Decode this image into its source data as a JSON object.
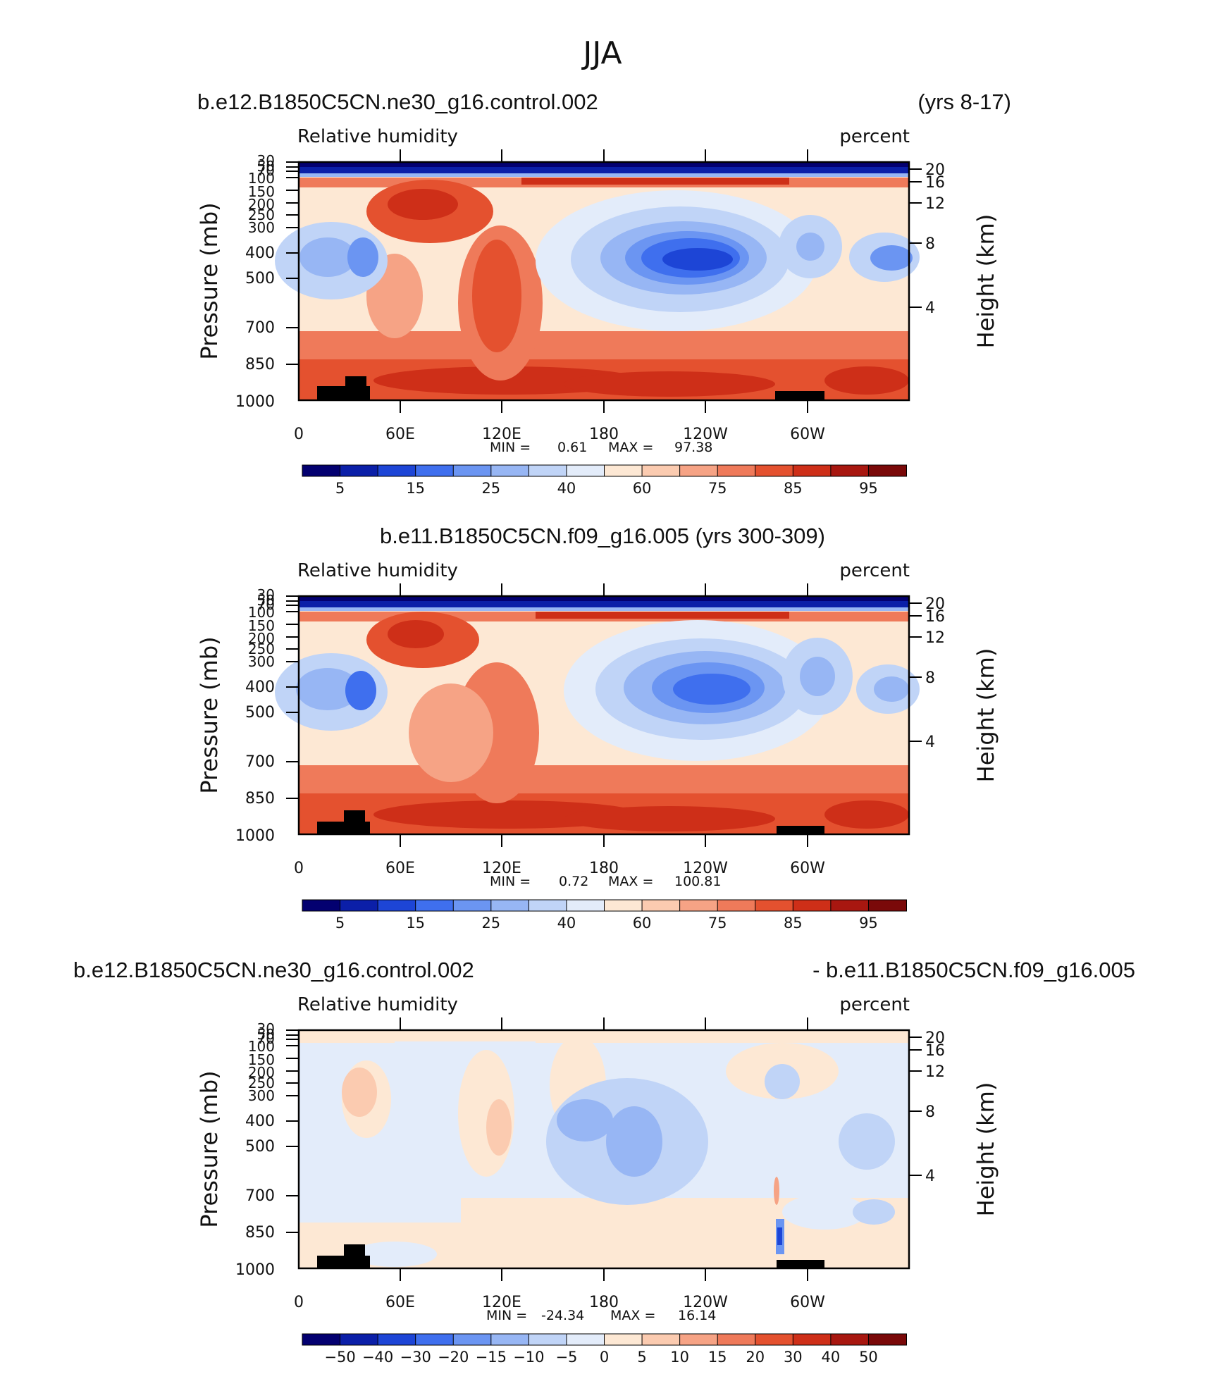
{
  "figure": {
    "title": "JJA"
  },
  "chart_data": [
    {
      "type": "contour",
      "title_left": "b.e12.B1850C5CN.ne30_g16.control.002",
      "title_right": "(yrs 8-17)",
      "variable": "Relative humidity",
      "units": "percent",
      "ylabel": "Pressure (mb)",
      "ylabel_right": "Height (km)",
      "x_ticks": [
        "0",
        "60E",
        "120E",
        "180",
        "120W",
        "60W"
      ],
      "y_ticks": [
        "30",
        "50",
        "70",
        "100",
        "150",
        "200",
        "250",
        "300",
        "400",
        "500",
        "700",
        "850",
        "1000"
      ],
      "y_right_ticks": [
        "20",
        "16",
        "12",
        "8",
        "4"
      ],
      "min_label": "MIN =",
      "min_value": "0.61",
      "max_label": "MAX =",
      "max_value": "97.38",
      "colorbar_colors": [
        "#030070",
        "#0b1fa8",
        "#1d45d6",
        "#3f6fee",
        "#6b95f2",
        "#97b6f4",
        "#c0d4f7",
        "#e3ecfa",
        "#fde8d4",
        "#fbcbb0",
        "#f6a385",
        "#ef7a5a",
        "#e4512f",
        "#ce2f18",
        "#a81710",
        "#7a0909"
      ],
      "colorbar_labels": [
        "5",
        "15",
        "25",
        "40",
        "60",
        "75",
        "85",
        "95"
      ]
    },
    {
      "type": "contour",
      "title_center": "b.e11.B1850C5CN.f09_g16.005 (yrs 300-309)",
      "variable": "Relative humidity",
      "units": "percent",
      "ylabel": "Pressure (mb)",
      "ylabel_right": "Height (km)",
      "x_ticks": [
        "0",
        "60E",
        "120E",
        "180",
        "120W",
        "60W"
      ],
      "y_ticks": [
        "30",
        "50",
        "70",
        "100",
        "150",
        "200",
        "250",
        "300",
        "400",
        "500",
        "700",
        "850",
        "1000"
      ],
      "y_right_ticks": [
        "20",
        "16",
        "12",
        "8",
        "4"
      ],
      "min_label": "MIN =",
      "min_value": "0.72",
      "max_label": "MAX =",
      "max_value": "100.81",
      "colorbar_colors": [
        "#030070",
        "#0b1fa8",
        "#1d45d6",
        "#3f6fee",
        "#6b95f2",
        "#97b6f4",
        "#c0d4f7",
        "#e3ecfa",
        "#fde8d4",
        "#fbcbb0",
        "#f6a385",
        "#ef7a5a",
        "#e4512f",
        "#ce2f18",
        "#a81710",
        "#7a0909"
      ],
      "colorbar_labels": [
        "5",
        "15",
        "25",
        "40",
        "60",
        "75",
        "85",
        "95"
      ]
    },
    {
      "type": "contour",
      "title_left": "b.e12.B1850C5CN.ne30_g16.control.002",
      "title_right": "- b.e11.B1850C5CN.f09_g16.005",
      "variable": "Relative humidity",
      "units": "percent",
      "ylabel": "Pressure (mb)",
      "ylabel_right": "Height (km)",
      "x_ticks": [
        "0",
        "60E",
        "120E",
        "180",
        "120W",
        "60W"
      ],
      "y_ticks": [
        "30",
        "50",
        "70",
        "100",
        "150",
        "200",
        "250",
        "300",
        "400",
        "500",
        "700",
        "850",
        "1000"
      ],
      "y_right_ticks": [
        "20",
        "16",
        "12",
        "8",
        "4"
      ],
      "min_label": "MIN =",
      "min_value": "-24.34",
      "max_label": "MAX =",
      "max_value": "16.14",
      "colorbar_colors": [
        "#030070",
        "#0b1fa8",
        "#1d45d6",
        "#3f6fee",
        "#6b95f2",
        "#97b6f4",
        "#c0d4f7",
        "#e3ecfa",
        "#fde8d4",
        "#fbcbb0",
        "#f6a385",
        "#ef7a5a",
        "#e4512f",
        "#ce2f18",
        "#a81710",
        "#7a0909"
      ],
      "colorbar_labels": [
        "−50",
        "−40",
        "−30",
        "−20",
        "−15",
        "−10",
        "−5",
        "0",
        "5",
        "10",
        "15",
        "20",
        "30",
        "40",
        "50"
      ]
    }
  ]
}
